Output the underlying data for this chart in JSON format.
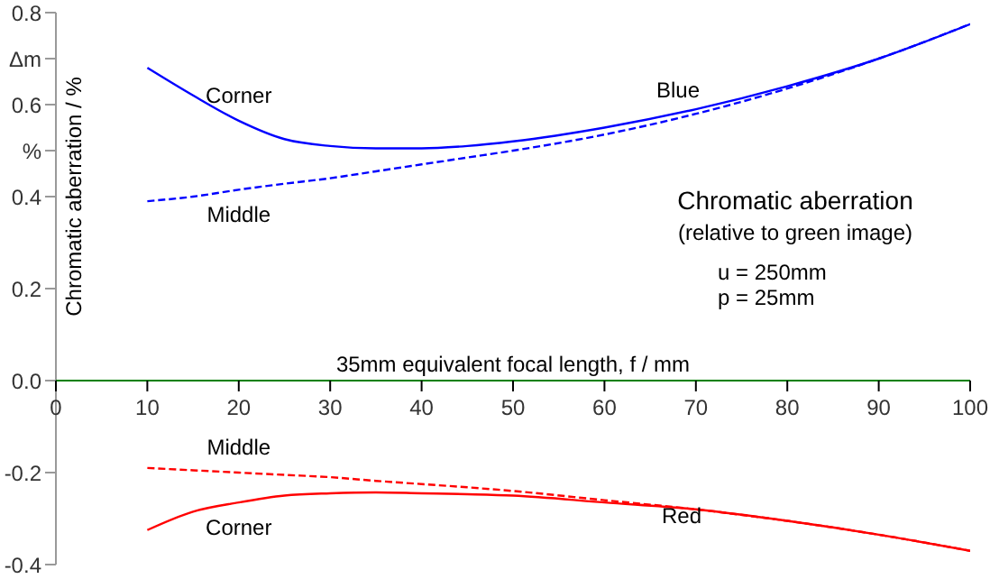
{
  "chart_data": {
    "type": "line",
    "title": "Chromatic aberration",
    "subtitle": "(relative to green image)",
    "xlabel": "35mm equivalent focal length, f  / mm",
    "ylabel": "Chromatic aberration  / %",
    "annotations": [
      "u = 250mm",
      "p = 25mm",
      "Blue",
      "Red"
    ],
    "x": [
      10,
      15,
      20,
      25,
      30,
      35,
      40,
      45,
      50,
      60,
      70,
      80,
      90,
      100
    ],
    "series": [
      {
        "name": "Corner",
        "color": "#0000ff",
        "line_style": "solid",
        "values": [
          0.68,
          0.62,
          0.565,
          0.525,
          0.51,
          0.505,
          0.505,
          0.51,
          0.52,
          0.55,
          0.59,
          0.64,
          0.7,
          0.775
        ]
      },
      {
        "name": "Middle",
        "color": "#0000ff",
        "line_style": "dashed",
        "values": [
          0.39,
          0.4,
          0.415,
          0.428,
          0.44,
          0.455,
          0.47,
          0.485,
          0.5,
          0.535,
          0.58,
          0.635,
          0.7,
          0.775
        ]
      },
      {
        "name": "Middle",
        "color": "#ff0000",
        "line_style": "dashed",
        "values": [
          -0.19,
          -0.195,
          -0.2,
          -0.205,
          -0.21,
          -0.218,
          -0.225,
          -0.232,
          -0.24,
          -0.26,
          -0.28,
          -0.305,
          -0.335,
          -0.37
        ]
      },
      {
        "name": "Corner",
        "color": "#ff0000",
        "line_style": "solid",
        "values": [
          -0.325,
          -0.285,
          -0.265,
          -0.25,
          -0.245,
          -0.243,
          -0.245,
          -0.247,
          -0.25,
          -0.265,
          -0.28,
          -0.305,
          -0.335,
          -0.37
        ]
      }
    ],
    "xlim": [
      0,
      100
    ],
    "xticks": [
      0,
      10,
      20,
      30,
      40,
      50,
      60,
      70,
      80,
      90,
      100
    ],
    "ylim": [
      -0.4,
      0.8
    ],
    "yticks": [
      -0.4,
      -0.2,
      {
        "value": 0,
        "label": "0.0"
      },
      0.2,
      0.4,
      {
        "value": 0.5,
        "label": "%"
      },
      0.6,
      {
        "value": 0.7,
        "label": "Δm"
      },
      0.8
    ],
    "marker": "none"
  }
}
